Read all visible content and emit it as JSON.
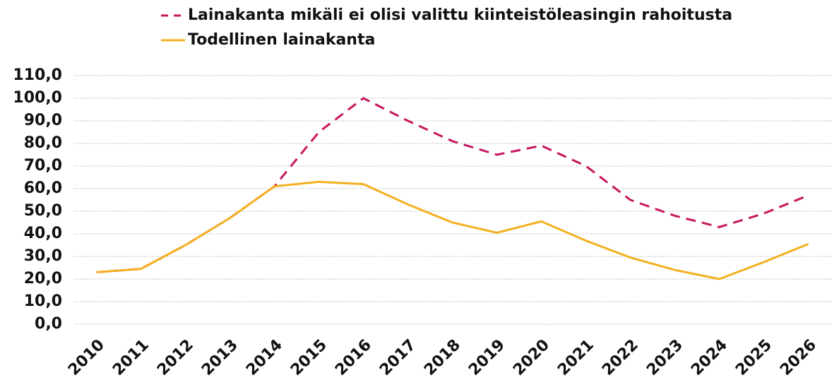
{
  "chart_data": {
    "type": "line",
    "categories": [
      "2010",
      "2011",
      "2012",
      "2013",
      "2014",
      "2015",
      "2016",
      "2017",
      "2018",
      "2019",
      "2020",
      "2021",
      "2022",
      "2023",
      "2024",
      "2025",
      "2026"
    ],
    "series": [
      {
        "name": "Lainakanta mikäli ei olisi valittu kiinteistöleasingin rahoitusta",
        "color": "#c8175d",
        "dashed": true,
        "values": [
          23,
          24.5,
          35,
          47,
          61,
          85,
          100,
          90,
          81,
          75,
          79,
          70,
          55,
          48,
          43,
          49,
          57
        ]
      },
      {
        "name": "Todellinen lainakanta",
        "color": "#f4b020",
        "dashed": false,
        "values": [
          23,
          24.5,
          35,
          47,
          61,
          63,
          62,
          53,
          45,
          40.5,
          45.5,
          37,
          29.5,
          24,
          20,
          27.5,
          35.5
        ]
      }
    ],
    "ylim": [
      0,
      110
    ],
    "yticks": [
      {
        "value": 0,
        "label": "0,0"
      },
      {
        "value": 10,
        "label": "10,0"
      },
      {
        "value": 20,
        "label": "20,0"
      },
      {
        "value": 30,
        "label": "30,0"
      },
      {
        "value": 40,
        "label": "40,0"
      },
      {
        "value": 50,
        "label": "50,0"
      },
      {
        "value": 60,
        "label": "60,0"
      },
      {
        "value": 70,
        "label": "70,0"
      },
      {
        "value": 80,
        "label": "80,0"
      },
      {
        "value": 90,
        "label": "90,0"
      },
      {
        "value": 100,
        "label": "100,0"
      },
      {
        "value": 110,
        "label": "110,0"
      }
    ],
    "grid": true
  }
}
